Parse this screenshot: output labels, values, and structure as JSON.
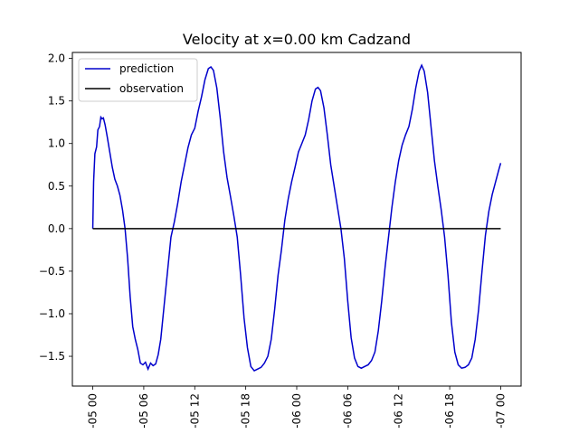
{
  "chart_data": {
    "type": "line",
    "title": "Velocity at x=0.00 km Cadzand",
    "xlabel": "",
    "ylabel": "",
    "x_ticks": [
      {
        "hours": 0,
        "label": "-05 00"
      },
      {
        "hours": 6,
        "label": "-05 06"
      },
      {
        "hours": 12,
        "label": "-05 12"
      },
      {
        "hours": 18,
        "label": "-05 18"
      },
      {
        "hours": 24,
        "label": "-06 00"
      },
      {
        "hours": 30,
        "label": "-06 06"
      },
      {
        "hours": 36,
        "label": "-06 12"
      },
      {
        "hours": 42,
        "label": "-06 18"
      },
      {
        "hours": 48,
        "label": "-07 00"
      }
    ],
    "xlim": [
      -2.4,
      50.4
    ],
    "y_ticks": [
      -1.5,
      -1.0,
      -0.5,
      0.0,
      0.5,
      1.0,
      1.5,
      2.0
    ],
    "y_tick_labels": [
      "−1.5",
      "−1.0",
      "−0.5",
      "0.0",
      "0.5",
      "1.0",
      "1.5",
      "2.0"
    ],
    "ylim": [
      -1.85,
      2.07
    ],
    "legend_position": "top-left",
    "grid": false,
    "series": [
      {
        "name": "prediction",
        "color": "#0000cc",
        "points": [
          [
            0.0,
            0.0
          ],
          [
            0.1,
            0.55
          ],
          [
            0.25,
            0.88
          ],
          [
            0.45,
            0.96
          ],
          [
            0.6,
            1.16
          ],
          [
            0.8,
            1.2
          ],
          [
            0.95,
            1.31
          ],
          [
            1.1,
            1.29
          ],
          [
            1.25,
            1.3
          ],
          [
            1.45,
            1.22
          ],
          [
            1.7,
            1.08
          ],
          [
            2.0,
            0.9
          ],
          [
            2.3,
            0.72
          ],
          [
            2.6,
            0.58
          ],
          [
            2.9,
            0.5
          ],
          [
            3.2,
            0.39
          ],
          [
            3.5,
            0.22
          ],
          [
            3.8,
            0.0
          ],
          [
            4.1,
            -0.35
          ],
          [
            4.4,
            -0.8
          ],
          [
            4.7,
            -1.15
          ],
          [
            5.0,
            -1.3
          ],
          [
            5.3,
            -1.42
          ],
          [
            5.6,
            -1.58
          ],
          [
            5.9,
            -1.6
          ],
          [
            6.2,
            -1.57
          ],
          [
            6.5,
            -1.65
          ],
          [
            6.8,
            -1.58
          ],
          [
            7.1,
            -1.61
          ],
          [
            7.4,
            -1.59
          ],
          [
            7.7,
            -1.48
          ],
          [
            8.0,
            -1.3
          ],
          [
            8.4,
            -0.9
          ],
          [
            8.8,
            -0.5
          ],
          [
            9.2,
            -0.1
          ],
          [
            9.6,
            0.08
          ],
          [
            10.0,
            0.3
          ],
          [
            10.4,
            0.55
          ],
          [
            10.8,
            0.75
          ],
          [
            11.2,
            0.95
          ],
          [
            11.6,
            1.1
          ],
          [
            12.0,
            1.18
          ],
          [
            12.4,
            1.38
          ],
          [
            12.8,
            1.55
          ],
          [
            13.2,
            1.75
          ],
          [
            13.6,
            1.88
          ],
          [
            13.9,
            1.9
          ],
          [
            14.2,
            1.86
          ],
          [
            14.6,
            1.65
          ],
          [
            15.0,
            1.3
          ],
          [
            15.4,
            0.9
          ],
          [
            15.8,
            0.6
          ],
          [
            16.2,
            0.38
          ],
          [
            16.6,
            0.15
          ],
          [
            17.0,
            -0.1
          ],
          [
            17.4,
            -0.55
          ],
          [
            17.8,
            -1.05
          ],
          [
            18.2,
            -1.4
          ],
          [
            18.6,
            -1.62
          ],
          [
            19.0,
            -1.67
          ],
          [
            19.4,
            -1.65
          ],
          [
            19.8,
            -1.63
          ],
          [
            20.2,
            -1.58
          ],
          [
            20.6,
            -1.5
          ],
          [
            21.0,
            -1.3
          ],
          [
            21.4,
            -0.95
          ],
          [
            21.8,
            -0.55
          ],
          [
            22.2,
            -0.25
          ],
          [
            22.6,
            0.1
          ],
          [
            23.0,
            0.35
          ],
          [
            23.4,
            0.55
          ],
          [
            23.8,
            0.72
          ],
          [
            24.2,
            0.9
          ],
          [
            24.6,
            1.0
          ],
          [
            25.0,
            1.1
          ],
          [
            25.4,
            1.28
          ],
          [
            25.8,
            1.5
          ],
          [
            26.2,
            1.64
          ],
          [
            26.5,
            1.66
          ],
          [
            26.8,
            1.62
          ],
          [
            27.2,
            1.42
          ],
          [
            27.6,
            1.1
          ],
          [
            28.0,
            0.75
          ],
          [
            28.4,
            0.5
          ],
          [
            28.8,
            0.25
          ],
          [
            29.2,
            0.0
          ],
          [
            29.6,
            -0.35
          ],
          [
            30.0,
            -0.85
          ],
          [
            30.4,
            -1.28
          ],
          [
            30.8,
            -1.52
          ],
          [
            31.2,
            -1.62
          ],
          [
            31.6,
            -1.64
          ],
          [
            32.0,
            -1.62
          ],
          [
            32.4,
            -1.6
          ],
          [
            32.8,
            -1.55
          ],
          [
            33.2,
            -1.45
          ],
          [
            33.6,
            -1.2
          ],
          [
            34.0,
            -0.85
          ],
          [
            34.4,
            -0.45
          ],
          [
            34.8,
            -0.1
          ],
          [
            35.2,
            0.25
          ],
          [
            35.6,
            0.55
          ],
          [
            36.0,
            0.8
          ],
          [
            36.4,
            0.98
          ],
          [
            36.8,
            1.1
          ],
          [
            37.2,
            1.2
          ],
          [
            37.6,
            1.4
          ],
          [
            38.0,
            1.65
          ],
          [
            38.4,
            1.85
          ],
          [
            38.7,
            1.92
          ],
          [
            39.0,
            1.85
          ],
          [
            39.4,
            1.6
          ],
          [
            39.8,
            1.2
          ],
          [
            40.2,
            0.8
          ],
          [
            40.6,
            0.5
          ],
          [
            41.0,
            0.22
          ],
          [
            41.4,
            -0.1
          ],
          [
            41.8,
            -0.55
          ],
          [
            42.2,
            -1.1
          ],
          [
            42.6,
            -1.45
          ],
          [
            43.0,
            -1.6
          ],
          [
            43.4,
            -1.64
          ],
          [
            43.8,
            -1.63
          ],
          [
            44.2,
            -1.6
          ],
          [
            44.6,
            -1.52
          ],
          [
            45.0,
            -1.3
          ],
          [
            45.4,
            -0.95
          ],
          [
            45.8,
            -0.5
          ],
          [
            46.2,
            -0.08
          ],
          [
            46.6,
            0.2
          ],
          [
            47.0,
            0.4
          ],
          [
            47.4,
            0.55
          ],
          [
            47.8,
            0.7
          ],
          [
            48.0,
            0.77
          ]
        ]
      },
      {
        "name": "observation",
        "color": "#000000",
        "points": [
          [
            0.0,
            0.0
          ],
          [
            48.0,
            0.0
          ]
        ]
      }
    ]
  }
}
